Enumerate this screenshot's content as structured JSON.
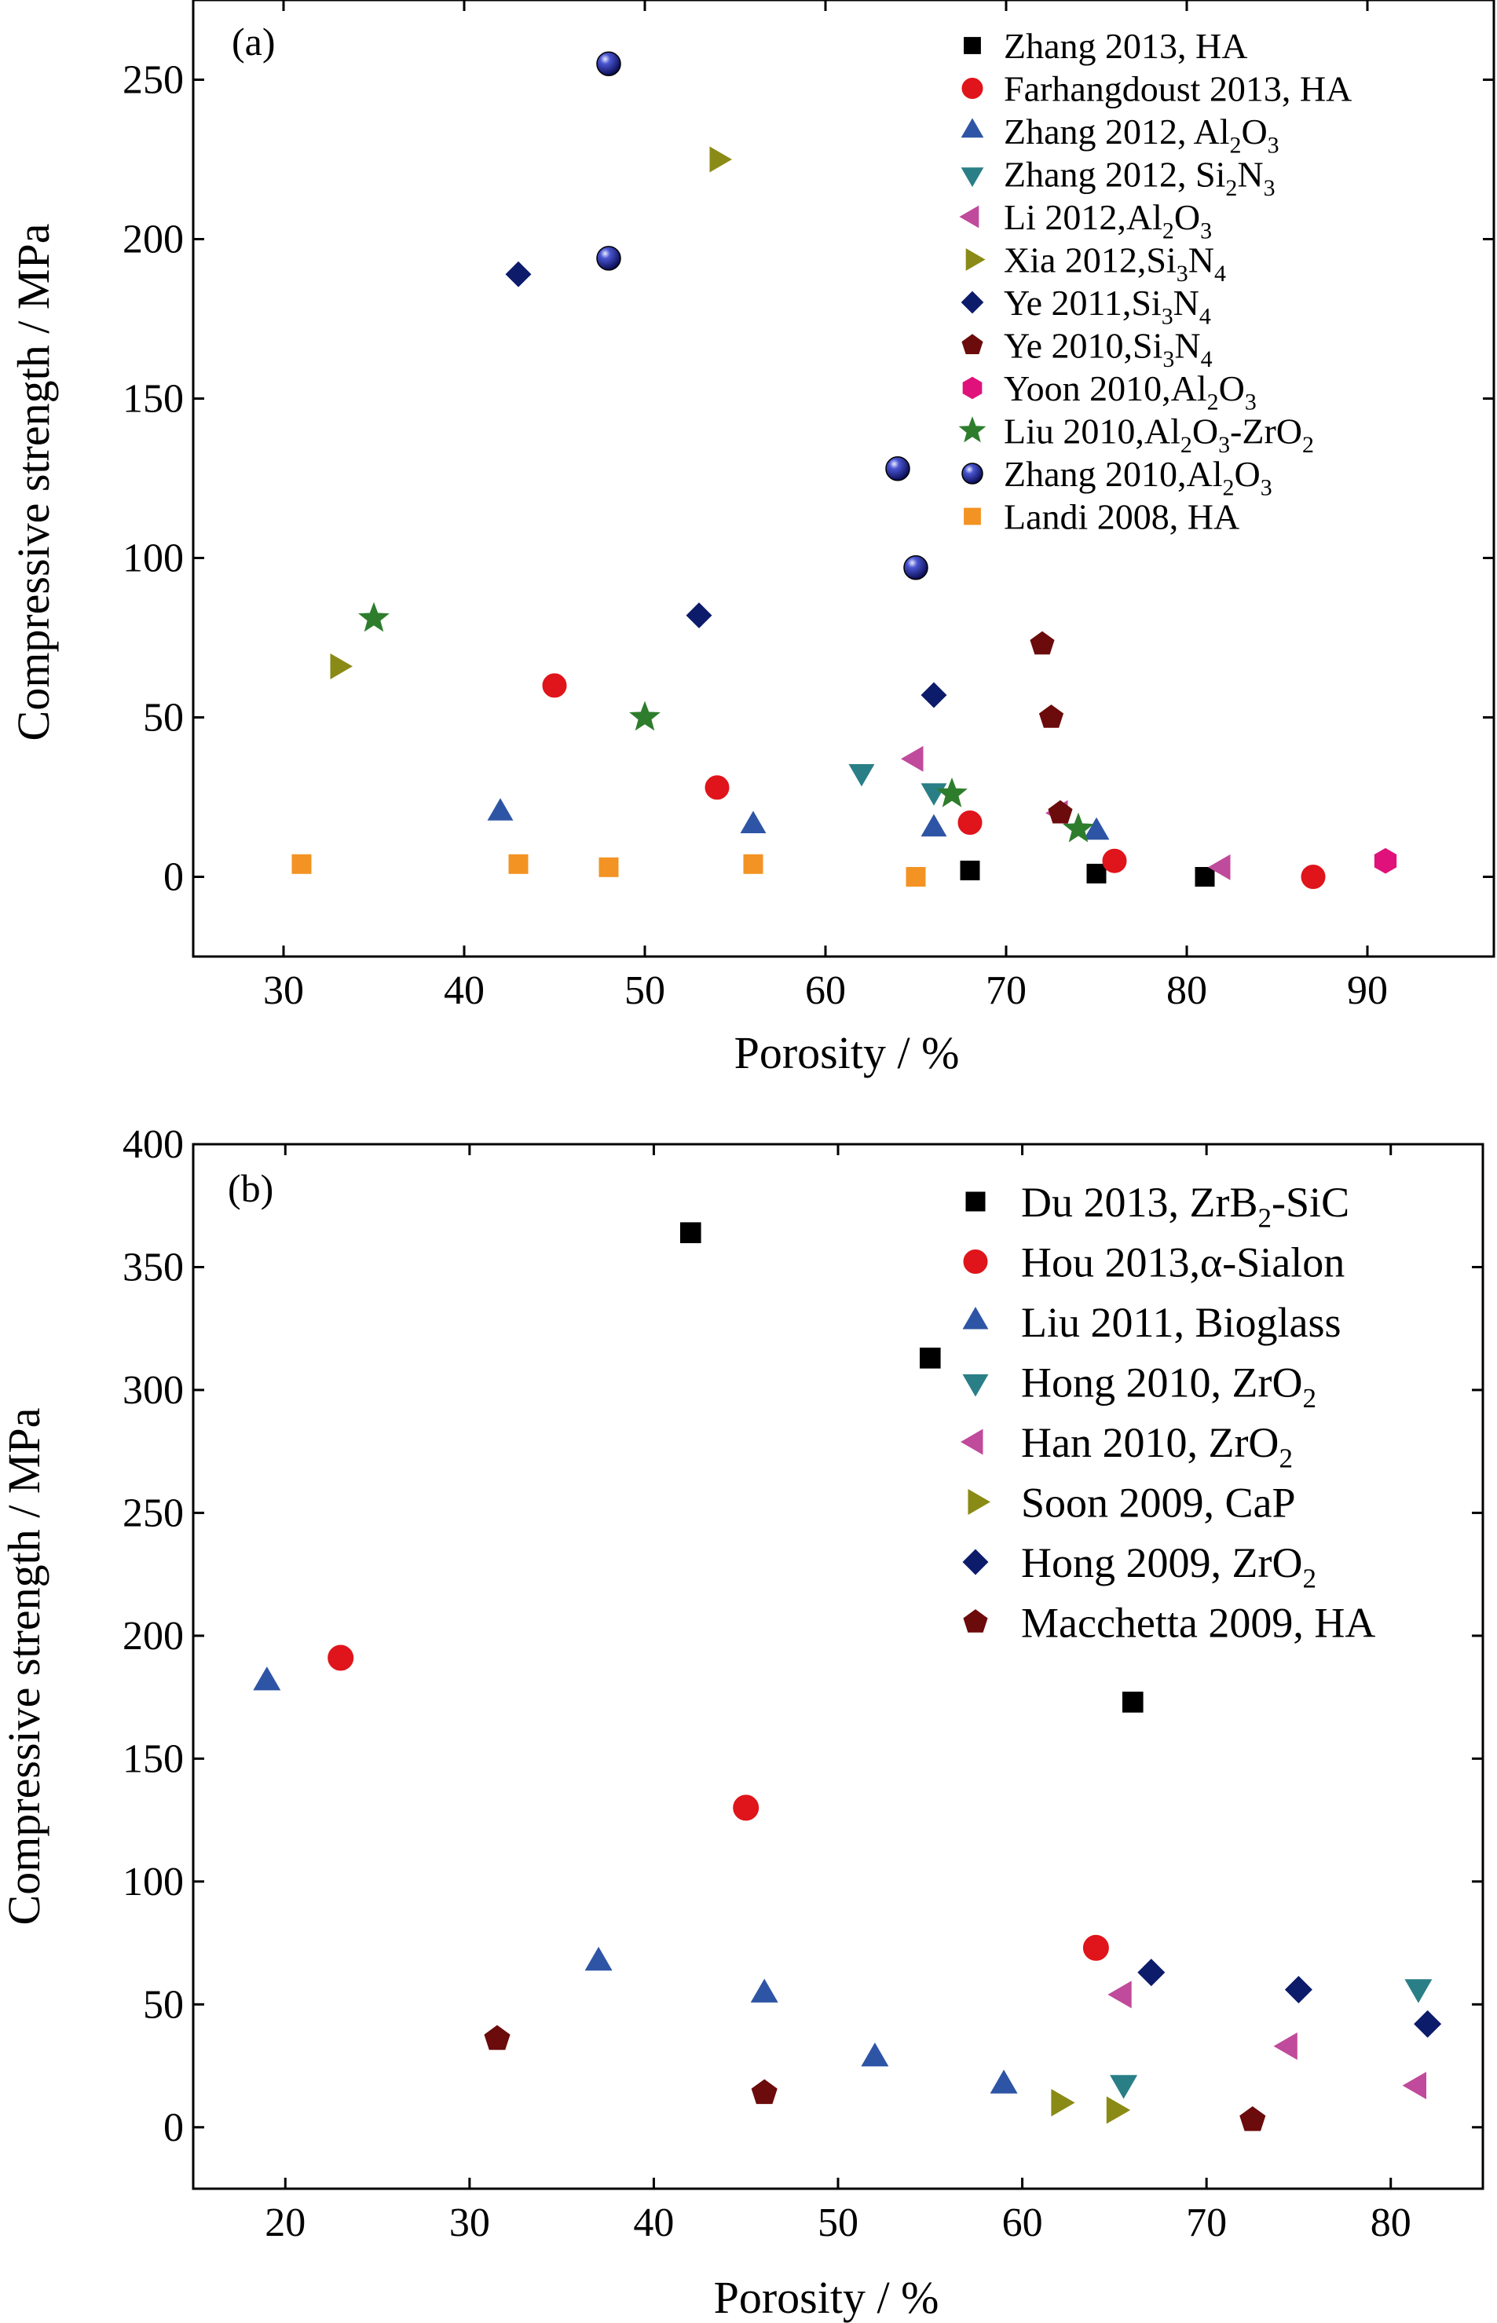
{
  "chart_data": [
    {
      "type": "scatter",
      "panel_label": "(a)",
      "xlabel": "Porosity / %",
      "ylabel": "Compressive strength / MPa",
      "xlim": [
        25,
        97
      ],
      "ylim": [
        -25,
        275
      ],
      "xticks": [
        30,
        40,
        50,
        60,
        70,
        80,
        90
      ],
      "yticks": [
        0,
        50,
        100,
        150,
        200,
        250
      ],
      "legend_position": "top-right",
      "series": [
        {
          "name": "Zhang 2013, HA",
          "pre": "Zhang 2013, HA",
          "formula": [],
          "marker": "square",
          "color": "#000000",
          "x": [
            68,
            75,
            81
          ],
          "y": [
            2,
            1,
            0
          ]
        },
        {
          "name": "Farhangdoust 2013, HA",
          "pre": "Farhangdoust 2013, HA",
          "formula": [],
          "marker": "circle",
          "color": "#e0141b",
          "x": [
            45,
            54,
            68,
            76,
            87
          ],
          "y": [
            60,
            28,
            17,
            5,
            0
          ]
        },
        {
          "name": "Zhang 2012, Al2O3",
          "pre": "Zhang 2012, ",
          "formula": [
            [
              "Al",
              ""
            ],
            [
              "2",
              "sub"
            ],
            [
              "O",
              ""
            ],
            [
              "3",
              "sub"
            ]
          ],
          "marker": "triangle-up",
          "color": "#2e55a5",
          "x": [
            42,
            56,
            66,
            75
          ],
          "y": [
            20,
            16,
            15,
            14
          ]
        },
        {
          "name": "Zhang 2012, Si2N3",
          "pre": "Zhang 2012, ",
          "formula": [
            [
              "Si",
              ""
            ],
            [
              "2",
              "sub"
            ],
            [
              "N",
              ""
            ],
            [
              "3",
              "sub"
            ]
          ],
          "marker": "triangle-down",
          "color": "#2a7f87",
          "x": [
            62,
            66
          ],
          "y": [
            33,
            27
          ]
        },
        {
          "name": "Li 2012,Al2O3",
          "pre": "Li 2012,",
          "formula": [
            [
              "Al",
              ""
            ],
            [
              "2",
              "sub"
            ],
            [
              "O",
              ""
            ],
            [
              "3",
              "sub"
            ]
          ],
          "marker": "triangle-left",
          "color": "#c04a9b",
          "x": [
            65,
            73,
            82
          ],
          "y": [
            37,
            20,
            3
          ]
        },
        {
          "name": "Xia 2012,Si3N4",
          "pre": "Xia 2012,",
          "formula": [
            [
              "Si",
              ""
            ],
            [
              "3",
              "sub"
            ],
            [
              "N",
              ""
            ],
            [
              "4",
              "sub"
            ]
          ],
          "marker": "triangle-right",
          "color": "#8a8a16",
          "x": [
            33,
            54
          ],
          "y": [
            66,
            225
          ]
        },
        {
          "name": "Ye 2011,Si3N4",
          "pre": "Ye 2011,",
          "formula": [
            [
              "Si",
              ""
            ],
            [
              "3",
              "sub"
            ],
            [
              "N",
              ""
            ],
            [
              "4",
              "sub"
            ]
          ],
          "marker": "diamond",
          "color": "#0d1b6b",
          "x": [
            43,
            53,
            66
          ],
          "y": [
            189,
            82,
            57
          ]
        },
        {
          "name": "Ye 2010,Si3N4",
          "pre": "Ye 2010,",
          "formula": [
            [
              "Si",
              ""
            ],
            [
              "3",
              "sub"
            ],
            [
              "N",
              ""
            ],
            [
              "4",
              "sub"
            ]
          ],
          "marker": "pentagon",
          "color": "#6b0b0b",
          "x": [
            72,
            72.5,
            73
          ],
          "y": [
            73,
            50,
            20
          ]
        },
        {
          "name": "Yoon 2010,Al2O3",
          "pre": "Yoon 2010,",
          "formula": [
            [
              "Al",
              ""
            ],
            [
              "2",
              "sub"
            ],
            [
              "O",
              ""
            ],
            [
              "3",
              "sub"
            ]
          ],
          "marker": "hexagon",
          "color": "#e0117a",
          "x": [
            91
          ],
          "y": [
            5
          ]
        },
        {
          "name": "Liu 2010,Al2O3-ZrO2",
          "pre": "Liu 2010,",
          "formula": [
            [
              "Al",
              ""
            ],
            [
              "2",
              "sub"
            ],
            [
              "O",
              ""
            ],
            [
              "3",
              "sub"
            ],
            [
              "-ZrO",
              ""
            ],
            [
              "2",
              "sub"
            ]
          ],
          "marker": "star",
          "color": "#2d7d2d",
          "x": [
            35,
            50,
            67,
            74
          ],
          "y": [
            81,
            50,
            26,
            15
          ]
        },
        {
          "name": "Zhang 2010,Al2O3",
          "pre": "Zhang 2010,",
          "formula": [
            [
              "Al",
              ""
            ],
            [
              "2",
              "sub"
            ],
            [
              "O",
              ""
            ],
            [
              "3",
              "sub"
            ]
          ],
          "marker": "sphere",
          "color": "#1a1f8a",
          "x": [
            48,
            48,
            64,
            65
          ],
          "y": [
            255,
            194,
            128,
            97
          ]
        },
        {
          "name": "Landi 2008, HA",
          "pre": "Landi 2008, HA",
          "formula": [],
          "marker": "square",
          "color": "#f39323",
          "x": [
            31,
            43,
            48,
            56,
            65
          ],
          "y": [
            4,
            4,
            3,
            4,
            0
          ]
        }
      ]
    },
    {
      "type": "scatter",
      "panel_label": "(b)",
      "xlabel": "Porosity / %",
      "ylabel": "Compressive strength / MPa",
      "xlim": [
        15,
        85
      ],
      "ylim": [
        -25,
        400
      ],
      "xticks": [
        20,
        30,
        40,
        50,
        60,
        70,
        80
      ],
      "yticks": [
        0,
        50,
        100,
        150,
        200,
        250,
        300,
        350,
        400
      ],
      "legend_position": "top-right",
      "series": [
        {
          "name": "Du 2013, ZrB2-SiC",
          "pre": "Du 2013, ",
          "formula": [
            [
              "ZrB",
              ""
            ],
            [
              "2",
              "sub"
            ],
            [
              "-SiC",
              ""
            ]
          ],
          "marker": "square",
          "color": "#000000",
          "x": [
            42,
            55,
            66
          ],
          "y": [
            364,
            313,
            173
          ]
        },
        {
          "name": "Hou 2013,α-Sialon",
          "pre": "Hou 2013,α-Sialon",
          "formula": [],
          "marker": "circle",
          "color": "#e0141b",
          "x": [
            23,
            45,
            64
          ],
          "y": [
            191,
            130,
            73
          ]
        },
        {
          "name": "Liu 2011, Bioglass",
          "pre": "Liu 2011, Bioglass",
          "formula": [],
          "marker": "triangle-up",
          "color": "#2e55a5",
          "x": [
            19,
            37,
            46,
            52,
            59
          ],
          "y": [
            181,
            67,
            54,
            28,
            17
          ]
        },
        {
          "name": "Hong 2010, ZrO2",
          "pre": "Hong 2010, ",
          "formula": [
            [
              "ZrO",
              ""
            ],
            [
              "2",
              "sub"
            ]
          ],
          "marker": "triangle-down",
          "color": "#2a7f87",
          "x": [
            65.5,
            81.5
          ],
          "y": [
            18,
            57
          ]
        },
        {
          "name": "Han 2010, ZrO2",
          "pre": "Han 2010, ",
          "formula": [
            [
              "ZrO",
              ""
            ],
            [
              "2",
              "sub"
            ]
          ],
          "marker": "triangle-left",
          "color": "#c04a9b",
          "x": [
            65.5,
            74.5,
            81.5
          ],
          "y": [
            54,
            33,
            17
          ]
        },
        {
          "name": "Soon 2009, CaP",
          "pre": "Soon 2009, CaP",
          "formula": [],
          "marker": "triangle-right",
          "color": "#8a8a16",
          "x": [
            62,
            65
          ],
          "y": [
            10,
            7
          ]
        },
        {
          "name": "Hong 2009, ZrO2",
          "pre": "Hong 2009, ",
          "formula": [
            [
              "ZrO",
              ""
            ],
            [
              "2",
              "sub"
            ]
          ],
          "marker": "diamond",
          "color": "#0d1b6b",
          "x": [
            67,
            75,
            82
          ],
          "y": [
            63,
            56,
            42
          ]
        },
        {
          "name": "Macchetta 2009, HA",
          "pre": "Macchetta 2009, HA",
          "formula": [],
          "marker": "pentagon",
          "color": "#6b0b0b",
          "x": [
            31.5,
            46,
            72.5
          ],
          "y": [
            36,
            14,
            3
          ]
        }
      ]
    }
  ]
}
